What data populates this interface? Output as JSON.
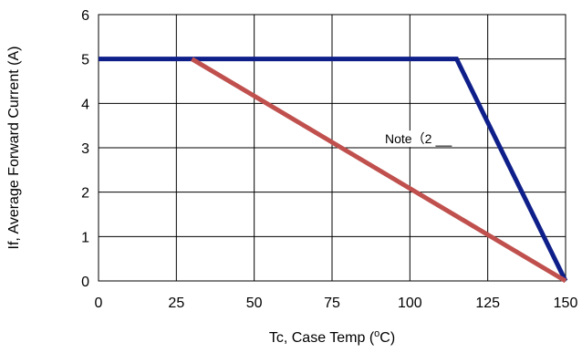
{
  "chart_data": {
    "type": "line",
    "xlabel": "Tc, Case Temp (",
    "xlabel_sup": "o",
    "xlabel_tail": "C)",
    "ylabel": "If, Average Forward Current (A)",
    "xlim": [
      0,
      150
    ],
    "ylim": [
      0,
      6
    ],
    "x_ticks": [
      0,
      25,
      50,
      75,
      100,
      125,
      150
    ],
    "y_ticks": [
      0,
      1,
      2,
      3,
      4,
      5,
      6
    ],
    "grid": true,
    "series": [
      {
        "color": "#0f1f8a",
        "x": [
          0,
          115,
          150
        ],
        "y": [
          5,
          5,
          0
        ]
      },
      {
        "color": "#c0504d",
        "x": [
          30,
          150
        ],
        "y": [
          5,
          0
        ]
      }
    ],
    "annotations": [
      {
        "text": "Note（2",
        "x": 92,
        "y": 3.1
      }
    ]
  }
}
